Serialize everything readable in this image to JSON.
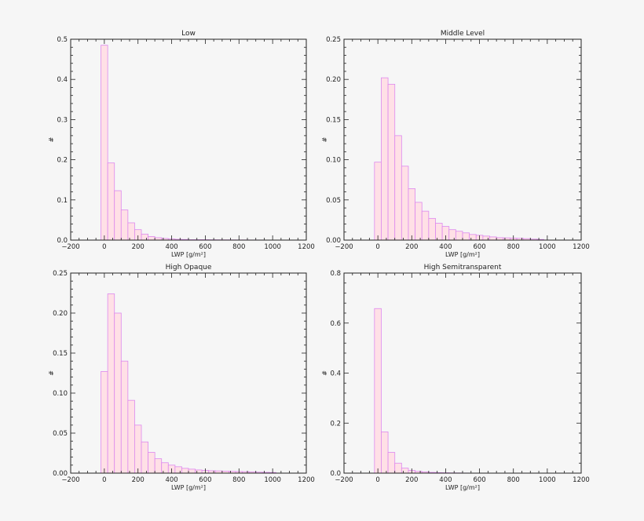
{
  "colors": {
    "bar_fill": "#ffe0e6",
    "bar_stroke": "#dd88ee",
    "axis": "#222222",
    "background": "#f6f6f6"
  },
  "chart_data": [
    {
      "type": "bar",
      "title": "Low",
      "xlabel": "LWP [g/m²]",
      "ylabel": "#",
      "xlim": [
        -200,
        1200
      ],
      "ylim": [
        0,
        0.5
      ],
      "xticks": [
        -200,
        0,
        200,
        400,
        600,
        800,
        1000,
        1200
      ],
      "xtick_labels": [
        "−200",
        "0",
        "200",
        "400",
        "600",
        "800",
        "1000",
        "1200"
      ],
      "yticks": [
        0,
        0.1,
        0.2,
        0.3,
        0.4,
        0.5
      ],
      "ytick_labels": [
        "0.0",
        "0.1",
        "0.2",
        "0.3",
        "0.4",
        "0.5"
      ],
      "bin_width": 40,
      "bin_starts": [
        -20,
        20,
        60,
        100,
        140,
        180,
        220,
        260,
        300,
        340,
        380,
        420,
        460,
        500,
        540,
        580,
        620,
        660,
        700,
        740,
        780,
        820,
        860,
        900,
        940,
        980
      ],
      "values": [
        0.485,
        0.192,
        0.123,
        0.075,
        0.043,
        0.026,
        0.015,
        0.009,
        0.006,
        0.004,
        0.003,
        0.002,
        0.0015,
        0.001,
        0.001,
        0.001,
        0.0008,
        0.0007,
        0.0006,
        0.0005,
        0.0004,
        0.0004,
        0.0003,
        0.0003,
        0.0002,
        0.0002
      ]
    },
    {
      "type": "bar",
      "title": "Middle Level",
      "xlabel": "LWP [g/m²]",
      "ylabel": "#",
      "xlim": [
        -200,
        1200
      ],
      "ylim": [
        0,
        0.25
      ],
      "xticks": [
        -200,
        0,
        200,
        400,
        600,
        800,
        1000,
        1200
      ],
      "xtick_labels": [
        "−200",
        "0",
        "200",
        "400",
        "600",
        "800",
        "1000",
        "1200"
      ],
      "yticks": [
        0,
        0.05,
        0.1,
        0.15,
        0.2,
        0.25
      ],
      "ytick_labels": [
        "0.00",
        "0.05",
        "0.10",
        "0.15",
        "0.20",
        "0.25"
      ],
      "bin_width": 40,
      "bin_starts": [
        -20,
        20,
        60,
        100,
        140,
        180,
        220,
        260,
        300,
        340,
        380,
        420,
        460,
        500,
        540,
        580,
        620,
        660,
        700,
        740,
        780,
        820,
        860,
        900,
        940
      ],
      "values": [
        0.097,
        0.202,
        0.194,
        0.13,
        0.092,
        0.064,
        0.047,
        0.036,
        0.027,
        0.021,
        0.017,
        0.013,
        0.011,
        0.009,
        0.007,
        0.006,
        0.005,
        0.004,
        0.003,
        0.0028,
        0.0025,
        0.0022,
        0.0018,
        0.0012,
        0.0008
      ]
    },
    {
      "type": "bar",
      "title": "High Opaque",
      "xlabel": "LWP [g/m²]",
      "ylabel": "#",
      "xlim": [
        -200,
        1200
      ],
      "ylim": [
        0,
        0.25
      ],
      "xticks": [
        -200,
        0,
        200,
        400,
        600,
        800,
        1000,
        1200
      ],
      "xtick_labels": [
        "−200",
        "0",
        "200",
        "400",
        "600",
        "800",
        "1000",
        "1200"
      ],
      "yticks": [
        0,
        0.05,
        0.1,
        0.15,
        0.2,
        0.25
      ],
      "ytick_labels": [
        "0.00",
        "0.05",
        "0.10",
        "0.15",
        "0.20",
        "0.25"
      ],
      "bin_width": 40,
      "bin_starts": [
        -20,
        20,
        60,
        100,
        140,
        180,
        220,
        260,
        300,
        340,
        380,
        420,
        460,
        500,
        540,
        580,
        620,
        660,
        700,
        740,
        780,
        820,
        860,
        900,
        940,
        980
      ],
      "values": [
        0.127,
        0.224,
        0.2,
        0.14,
        0.091,
        0.06,
        0.039,
        0.026,
        0.018,
        0.013,
        0.01,
        0.008,
        0.006,
        0.005,
        0.004,
        0.0035,
        0.003,
        0.0028,
        0.0025,
        0.0022,
        0.002,
        0.0018,
        0.0015,
        0.0012,
        0.001,
        0.0008
      ]
    },
    {
      "type": "bar",
      "title": "High Semitransparent",
      "xlabel": "LWP [g/m²]",
      "ylabel": "#",
      "xlim": [
        -200,
        1200
      ],
      "ylim": [
        0,
        0.8
      ],
      "xticks": [
        -200,
        0,
        200,
        400,
        600,
        800,
        1000,
        1200
      ],
      "xtick_labels": [
        "−200",
        "0",
        "200",
        "400",
        "600",
        "800",
        "1000",
        "1200"
      ],
      "yticks": [
        0,
        0.2,
        0.4,
        0.6,
        0.8
      ],
      "ytick_labels": [
        "0.0",
        "0.2",
        "0.4",
        "0.6",
        "0.8"
      ],
      "bin_width": 40,
      "bin_starts": [
        -20,
        20,
        60,
        100,
        140,
        180,
        220,
        260,
        300,
        340,
        380,
        420,
        460,
        500
      ],
      "values": [
        0.658,
        0.165,
        0.083,
        0.04,
        0.02,
        0.011,
        0.007,
        0.005,
        0.003,
        0.002,
        0.0015,
        0.001,
        0.0008,
        0.0005
      ]
    }
  ]
}
